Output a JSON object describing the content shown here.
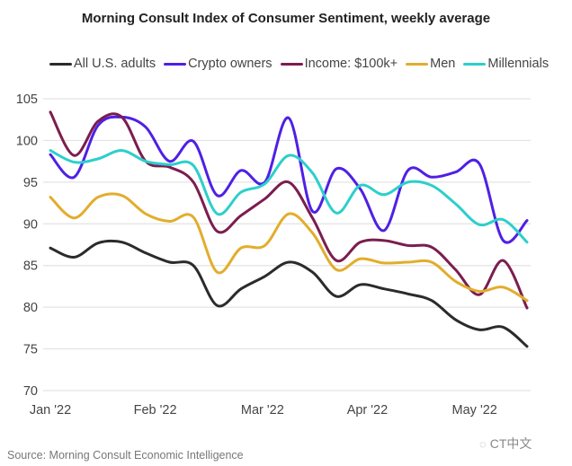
{
  "chart_data": {
    "type": "line",
    "title": "Morning Consult Index of Consumer Sentiment, weekly average",
    "xlabel": "",
    "ylabel": "",
    "ylim": [
      70,
      105
    ],
    "yticks": [
      70,
      75,
      80,
      85,
      90,
      95,
      100,
      105
    ],
    "xtick_labels": [
      "Jan '22",
      "Feb '22",
      "Mar '22",
      "Apr '22",
      "May '22"
    ],
    "xtick_weeks": [
      0,
      4.4,
      8.9,
      13.3,
      17.8
    ],
    "grid": true,
    "legend_position": "top",
    "x": [
      0,
      1,
      2,
      3,
      4,
      5,
      6,
      7,
      8,
      9,
      10,
      11,
      12,
      13,
      14,
      15,
      16,
      17,
      18,
      19,
      20
    ],
    "series": [
      {
        "name": "All U.S. adults",
        "color": "#2b2b2b",
        "values": [
          87.1,
          86.0,
          87.7,
          87.8,
          86.5,
          85.4,
          85.0,
          80.2,
          82.2,
          83.7,
          85.4,
          84.2,
          81.3,
          82.7,
          82.2,
          81.6,
          80.8,
          78.5,
          77.3,
          77.6,
          75.3
        ]
      },
      {
        "name": "Crypto owners",
        "color": "#4f20e4",
        "values": [
          98.3,
          95.6,
          101.8,
          102.8,
          101.6,
          97.5,
          99.9,
          93.4,
          96.4,
          95.0,
          102.7,
          91.5,
          96.6,
          94.2,
          89.2,
          96.4,
          95.6,
          96.2,
          97.2,
          88.0,
          90.4
        ]
      },
      {
        "name": "Income: $100k+",
        "color": "#7b1d4f",
        "values": [
          103.4,
          98.2,
          102.3,
          102.8,
          97.5,
          96.8,
          95.0,
          89.1,
          91.0,
          93.0,
          95.0,
          90.7,
          85.6,
          87.8,
          88.0,
          87.4,
          87.2,
          84.5,
          81.5,
          85.6,
          79.9
        ]
      },
      {
        "name": "Men",
        "color": "#e2ad2c",
        "values": [
          93.2,
          90.7,
          93.2,
          93.4,
          91.2,
          90.3,
          90.8,
          84.2,
          87.1,
          87.4,
          91.2,
          88.9,
          84.5,
          85.8,
          85.3,
          85.4,
          85.4,
          83.1,
          81.9,
          82.4,
          80.8
        ]
      },
      {
        "name": "Millennials",
        "color": "#2ccfcc",
        "values": [
          98.8,
          97.4,
          97.8,
          98.8,
          97.5,
          97.1,
          97.0,
          91.2,
          93.8,
          94.8,
          98.2,
          96.1,
          91.3,
          94.6,
          93.5,
          95.0,
          94.6,
          92.4,
          89.9,
          90.5,
          87.8
        ]
      }
    ]
  },
  "source": "Source: Morning Consult Economic Intelligence",
  "watermark": "CT中文"
}
